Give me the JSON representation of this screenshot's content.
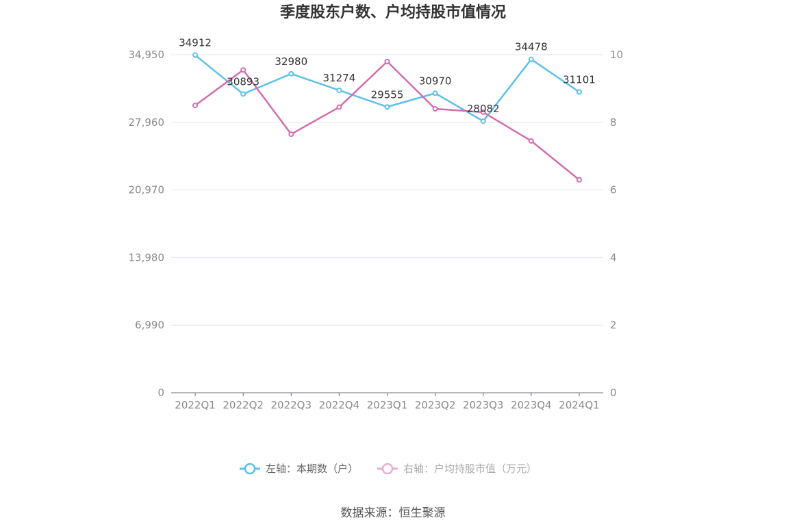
{
  "chart_data": {
    "type": "line",
    "title": "季度股东户数、户均持股市值情况",
    "categories": [
      "2022Q1",
      "2022Q2",
      "2022Q3",
      "2022Q4",
      "2023Q1",
      "2023Q2",
      "2023Q3",
      "2023Q4",
      "2024Q1"
    ],
    "series": [
      {
        "name": "左轴：本期数（户）",
        "axis": "left",
        "color": "#5bc0eb",
        "values": [
          34912,
          30893,
          32980,
          31274,
          29555,
          30970,
          28082,
          34478,
          31101
        ],
        "labels": [
          "34912",
          "30893",
          "32980",
          "31274",
          "29555",
          "30970",
          "28082",
          "34478",
          "31101"
        ]
      },
      {
        "name": "右轴：户均持股市值（万元）",
        "axis": "right",
        "color": "#d36bb0",
        "values": [
          8.5,
          9.55,
          7.65,
          8.45,
          9.8,
          8.4,
          8.3,
          7.45,
          6.3
        ]
      }
    ],
    "left_axis": {
      "min": 0,
      "max": 34950,
      "ticks": [
        0,
        6990,
        13980,
        20970,
        27960,
        34950
      ],
      "tick_labels": [
        "0",
        "6,990",
        "13,980",
        "20,970",
        "27,960",
        "34,950"
      ]
    },
    "right_axis": {
      "min": 0,
      "max": 10,
      "ticks": [
        0,
        2,
        4,
        6,
        8,
        10
      ],
      "tick_labels": [
        "0",
        "2",
        "4",
        "6",
        "8",
        "10"
      ]
    },
    "grid": true,
    "legend_position": "bottom"
  },
  "source": "数据来源：恒生聚源"
}
